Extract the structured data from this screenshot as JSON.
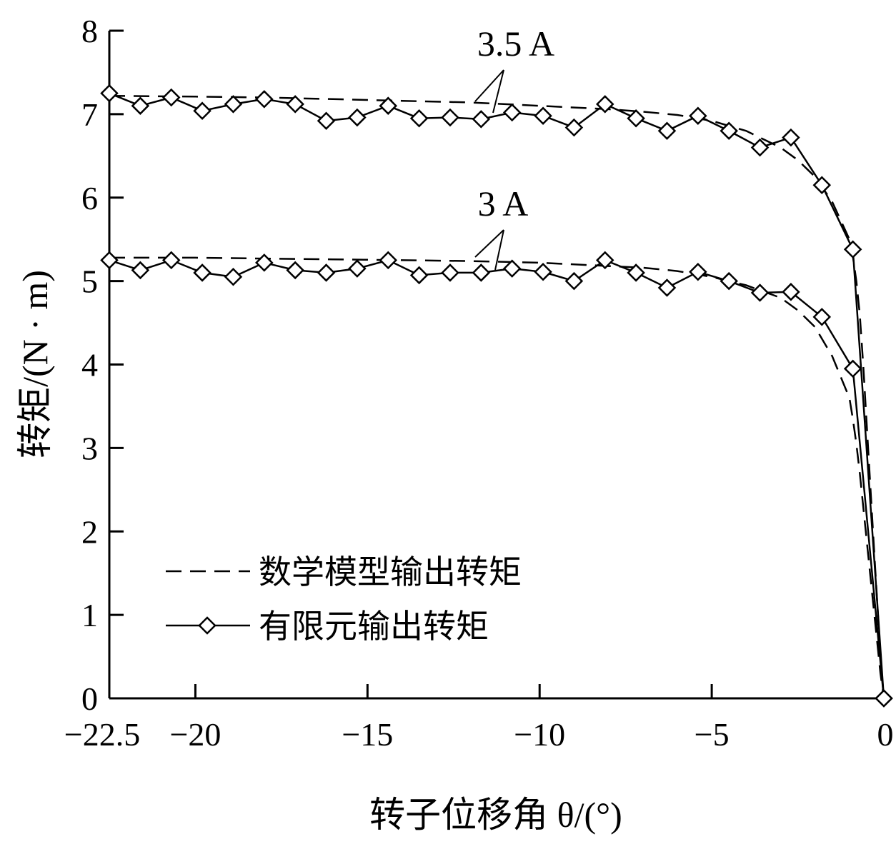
{
  "chart_data": {
    "type": "line",
    "xlabel": "转子位移角 θ/(°)",
    "ylabel": "转矩/(N · m)",
    "xlim": [
      -22.5,
      0
    ],
    "ylim": [
      0,
      8
    ],
    "x_ticks": [
      -22.5,
      -20,
      -15,
      -10,
      -5,
      0
    ],
    "x_tick_labels": [
      "−22.5",
      "−20",
      "−15",
      "−10",
      "−5",
      "0"
    ],
    "y_ticks": [
      0,
      1,
      2,
      3,
      4,
      5,
      6,
      7,
      8
    ],
    "y_tick_labels": [
      "0",
      "1",
      "2",
      "3",
      "4",
      "5",
      "6",
      "7",
      "8"
    ],
    "grid": false,
    "legend": {
      "placement": "bottom-left",
      "entries": [
        {
          "label": "数学模型输出转矩",
          "style": "dashed"
        },
        {
          "label": "有限元输出转矩",
          "style": "solid-diamond"
        }
      ]
    },
    "annotations": [
      {
        "text": "3.5 A",
        "target_series": "3.5 A"
      },
      {
        "text": "3 A",
        "target_series": "3 A"
      }
    ],
    "series": [
      {
        "group": "3.5 A",
        "style": "dashed",
        "x": [
          -22.5,
          -20,
          -18,
          -16,
          -14,
          -12,
          -10,
          -8,
          -7,
          -6,
          -5,
          -4,
          -3,
          -2.5,
          -2,
          -1.5,
          -1,
          -0.9,
          -0.8,
          -0.7,
          -0.6,
          -0.5,
          -0.4,
          -0.3,
          -0.2,
          -0.1,
          0
        ],
        "y": [
          7.22,
          7.21,
          7.2,
          7.18,
          7.16,
          7.14,
          7.1,
          7.06,
          7.03,
          6.99,
          6.92,
          6.8,
          6.6,
          6.45,
          6.25,
          5.95,
          5.5,
          5.3,
          5.0,
          4.6,
          4.0,
          3.3,
          2.6,
          1.9,
          1.2,
          0.5,
          0.0
        ]
      },
      {
        "group": "3.5 A",
        "style": "solid-diamond",
        "x": [
          -22.5,
          -21.6,
          -20.7,
          -19.8,
          -18.9,
          -18.0,
          -17.1,
          -16.2,
          -15.3,
          -14.4,
          -13.5,
          -12.6,
          -11.7,
          -10.8,
          -9.9,
          -9.0,
          -8.1,
          -7.2,
          -6.3,
          -5.4,
          -4.5,
          -3.6,
          -2.7,
          -1.8,
          -0.9,
          0
        ],
        "y": [
          7.25,
          7.1,
          7.2,
          7.04,
          7.12,
          7.18,
          7.12,
          6.92,
          6.96,
          7.1,
          6.95,
          6.96,
          6.94,
          7.02,
          6.98,
          6.84,
          7.12,
          6.95,
          6.8,
          6.98,
          6.8,
          6.6,
          6.72,
          6.15,
          5.38,
          0.0
        ]
      },
      {
        "group": "3 A",
        "style": "dashed",
        "x": [
          -22.5,
          -20,
          -18,
          -16,
          -14,
          -12,
          -10,
          -8,
          -7,
          -6,
          -5,
          -4,
          -3,
          -2.5,
          -2,
          -1.5,
          -1,
          -0.9,
          -0.8,
          -0.7,
          -0.6,
          -0.5,
          -0.4,
          -0.3,
          -0.2,
          -0.1,
          0
        ],
        "y": [
          5.28,
          5.28,
          5.27,
          5.26,
          5.25,
          5.24,
          5.22,
          5.18,
          5.16,
          5.12,
          5.05,
          4.95,
          4.8,
          4.65,
          4.45,
          4.1,
          3.6,
          3.35,
          3.05,
          2.7,
          2.3,
          1.9,
          1.5,
          1.1,
          0.7,
          0.3,
          0.0
        ]
      },
      {
        "group": "3 A",
        "style": "solid-diamond",
        "x": [
          -22.5,
          -21.6,
          -20.7,
          -19.8,
          -18.9,
          -18.0,
          -17.1,
          -16.2,
          -15.3,
          -14.4,
          -13.5,
          -12.6,
          -11.7,
          -10.8,
          -9.9,
          -9.0,
          -8.1,
          -7.2,
          -6.3,
          -5.4,
          -4.5,
          -3.6,
          -2.7,
          -1.8,
          -0.9,
          0
        ],
        "y": [
          5.25,
          5.13,
          5.25,
          5.1,
          5.05,
          5.22,
          5.13,
          5.1,
          5.15,
          5.25,
          5.07,
          5.1,
          5.1,
          5.15,
          5.11,
          5.0,
          5.25,
          5.1,
          4.92,
          5.11,
          5.0,
          4.86,
          4.87,
          4.57,
          3.95,
          0.0
        ]
      }
    ]
  }
}
